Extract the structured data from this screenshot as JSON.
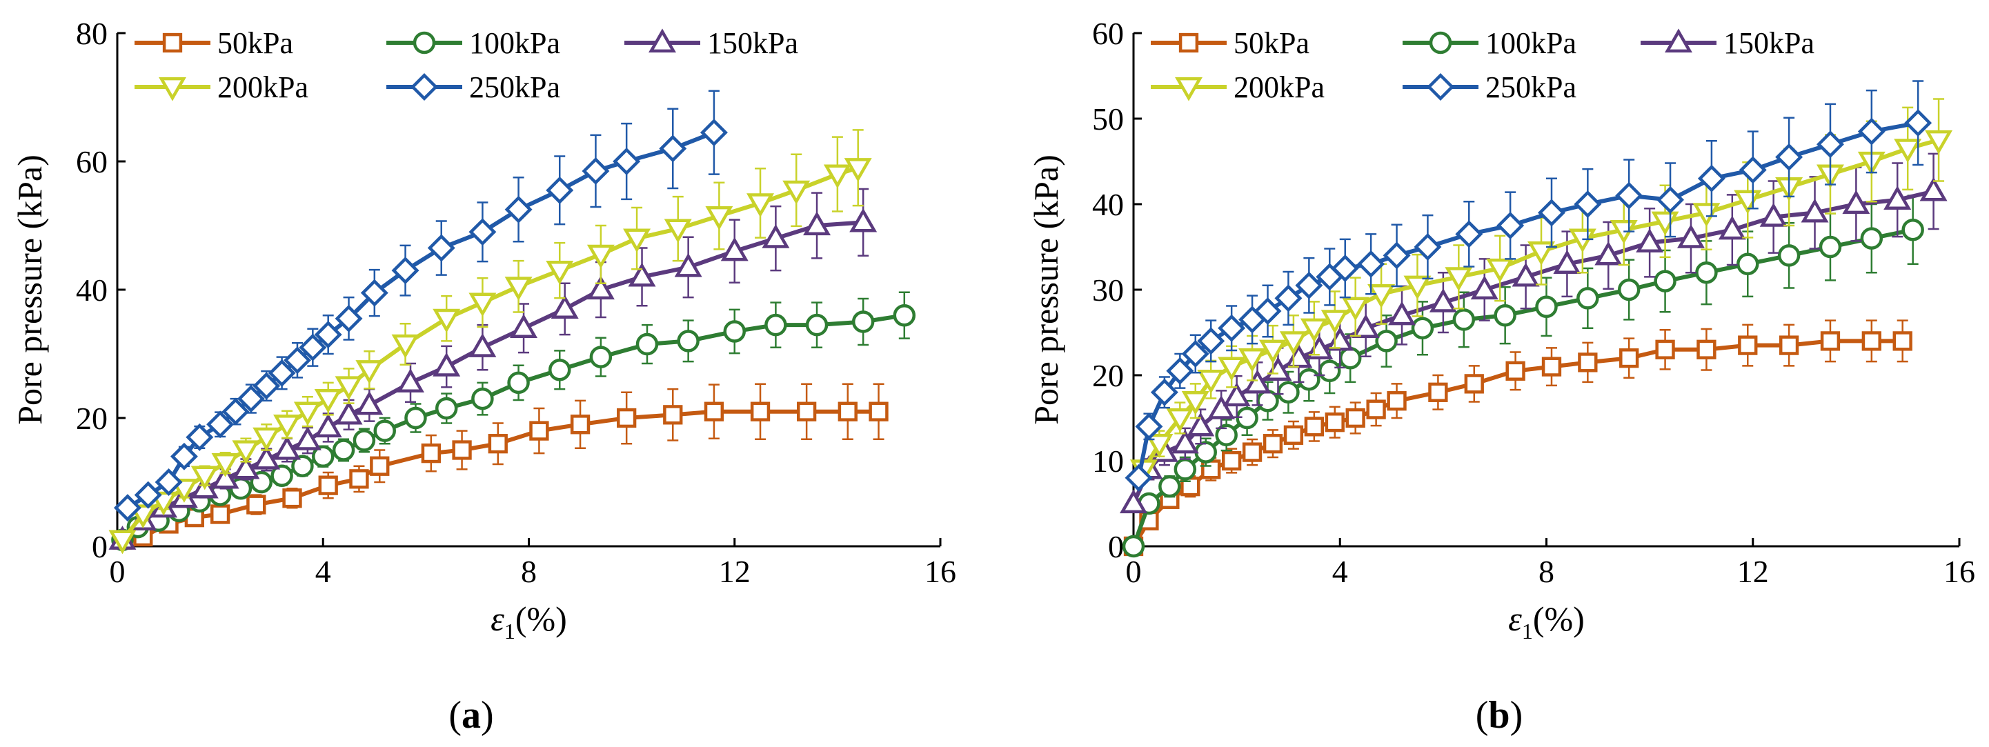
{
  "chart_data": [
    {
      "panel": "(a)",
      "type": "line",
      "xlabel_symbol": "ε",
      "xlabel_sub": "1",
      "xlabel_unit": "(%)",
      "ylabel": "Pore pressure (kPa)",
      "xlim": [
        0,
        16
      ],
      "ylim": [
        0,
        80
      ],
      "xticks": [
        0,
        4,
        8,
        12,
        16
      ],
      "yticks": [
        0,
        20,
        40,
        60,
        80
      ],
      "series": [
        {
          "name": "50kPa",
          "color": "#c55a11",
          "marker": "square",
          "x": [
            0.1,
            0.5,
            1.0,
            1.5,
            2.0,
            2.7,
            3.4,
            4.1,
            4.7,
            5.1,
            6.1,
            6.7,
            7.4,
            8.2,
            9.0,
            9.9,
            10.8,
            11.6,
            12.5,
            13.4,
            14.2,
            14.8
          ],
          "y": [
            1,
            1.5,
            3.5,
            4.5,
            5,
            6.5,
            7.5,
            9.5,
            10.5,
            12.5,
            14.5,
            15,
            16,
            18,
            19,
            20,
            20.5,
            21,
            21,
            21,
            21,
            21
          ],
          "err": [
            0,
            0.5,
            1,
            1,
            1.2,
            1.5,
            1.5,
            2,
            2,
            2.5,
            2.8,
            3,
            3.2,
            3.5,
            3.7,
            4,
            4,
            4.2,
            4.3,
            4.3,
            4.3,
            4.3
          ]
        },
        {
          "name": "100kPa",
          "color": "#2e7d32",
          "marker": "circle",
          "x": [
            0.1,
            0.4,
            0.8,
            1.2,
            1.6,
            2.0,
            2.4,
            2.8,
            3.2,
            3.6,
            4.0,
            4.4,
            4.8,
            5.2,
            5.8,
            6.4,
            7.1,
            7.8,
            8.6,
            9.4,
            10.3,
            11.1,
            12.0,
            12.8,
            13.6,
            14.5,
            15.3
          ],
          "y": [
            1,
            3,
            4,
            5.5,
            7,
            8,
            9,
            10,
            11,
            12.5,
            14,
            15,
            16.5,
            18,
            20,
            21.5,
            23,
            25.5,
            27.5,
            29.5,
            31.5,
            32,
            33.5,
            34.5,
            34.5,
            35,
            36
          ],
          "err": [
            0,
            0.8,
            1,
            1,
            1.2,
            1.2,
            1.3,
            1.4,
            1.5,
            1.5,
            1.6,
            1.7,
            1.8,
            2,
            2.2,
            2.3,
            2.5,
            2.7,
            3,
            3,
            3,
            3.2,
            3.4,
            3.5,
            3.5,
            3.6,
            3.6
          ]
        },
        {
          "name": "150kPa",
          "color": "#5b3a7e",
          "marker": "triangle-up",
          "x": [
            0.1,
            0.5,
            0.9,
            1.3,
            1.7,
            2.1,
            2.5,
            2.9,
            3.3,
            3.7,
            4.1,
            4.5,
            4.9,
            5.7,
            6.4,
            7.1,
            7.9,
            8.7,
            9.4,
            10.2,
            11.1,
            12.0,
            12.8,
            13.6,
            14.5
          ],
          "y": [
            1,
            4,
            6,
            7.5,
            9,
            10.5,
            12,
            13.5,
            15,
            16.5,
            18.5,
            20.5,
            22,
            25.5,
            28,
            31,
            34,
            37,
            40,
            42,
            43.5,
            46,
            48,
            50,
            50.5
          ],
          "err": [
            0,
            1,
            1.2,
            1.3,
            1.4,
            1.5,
            1.6,
            1.7,
            1.8,
            2,
            2.2,
            2.3,
            2.5,
            3,
            3.2,
            3.5,
            3.8,
            4,
            4.3,
            4.5,
            4.7,
            4.9,
            5,
            5.1,
            5.2
          ]
        },
        {
          "name": "200kPa",
          "color": "#c9d22a",
          "marker": "triangle-down",
          "x": [
            0.1,
            0.5,
            0.9,
            1.3,
            1.7,
            2.1,
            2.5,
            2.9,
            3.3,
            3.7,
            4.1,
            4.5,
            4.9,
            5.6,
            6.4,
            7.1,
            7.8,
            8.6,
            9.4,
            10.1,
            10.9,
            11.7,
            12.5,
            13.2,
            14.0,
            14.4
          ],
          "y": [
            1,
            5,
            7,
            9,
            11,
            13,
            15,
            17,
            19,
            21,
            23,
            25,
            27.5,
            31.5,
            35.5,
            38,
            40.5,
            43,
            45.5,
            48,
            49.5,
            51.5,
            53.5,
            55.5,
            58,
            59
          ],
          "err": [
            0,
            1,
            1.2,
            1.4,
            1.5,
            1.6,
            1.8,
            2,
            2.1,
            2.3,
            2.5,
            2.7,
            2.9,
            3.2,
            3.5,
            3.8,
            4,
            4.3,
            4.5,
            4.8,
            5,
            5.2,
            5.4,
            5.6,
            5.8,
            5.9
          ]
        },
        {
          "name": "250kPa",
          "color": "#2059a8",
          "marker": "diamond",
          "x": [
            0.2,
            0.6,
            1.0,
            1.3,
            1.6,
            2.0,
            2.3,
            2.6,
            2.9,
            3.2,
            3.5,
            3.8,
            4.1,
            4.5,
            5.0,
            5.6,
            6.3,
            7.1,
            7.8,
            8.6,
            9.3,
            9.9,
            10.8,
            11.6
          ],
          "y": [
            6,
            8,
            10,
            14,
            17,
            19,
            21,
            23,
            25,
            27,
            29,
            31,
            33,
            35.5,
            39.5,
            43,
            46.5,
            49,
            52.5,
            55.5,
            58.5,
            60,
            62,
            64.5
          ],
          "err": [
            0,
            1,
            1.2,
            1.5,
            1.7,
            1.9,
            2,
            2.2,
            2.3,
            2.5,
            2.7,
            2.9,
            3,
            3.3,
            3.6,
            3.9,
            4.2,
            4.6,
            5,
            5.3,
            5.6,
            5.9,
            6.2,
            6.5
          ]
        }
      ]
    },
    {
      "panel": "(b)",
      "type": "line",
      "xlabel_symbol": "ε",
      "xlabel_sub": "1",
      "xlabel_unit": "(%)",
      "ylabel": "Pore pressure (kPa)",
      "xlim": [
        0,
        16
      ],
      "ylim": [
        0,
        60
      ],
      "xticks": [
        0,
        4,
        8,
        12,
        16
      ],
      "yticks": [
        0,
        10,
        20,
        30,
        40,
        50,
        60
      ],
      "series": [
        {
          "name": "50kPa",
          "color": "#c55a11",
          "marker": "square",
          "x": [
            0,
            0.3,
            0.7,
            1.1,
            1.5,
            1.9,
            2.3,
            2.7,
            3.1,
            3.5,
            3.9,
            4.3,
            4.7,
            5.1,
            5.9,
            6.6,
            7.4,
            8.1,
            8.8,
            9.6,
            10.3,
            11.1,
            11.9,
            12.7,
            13.5,
            14.3,
            14.9
          ],
          "y": [
            0,
            3,
            5.5,
            7,
            9,
            10,
            11,
            12,
            13,
            14,
            14.5,
            15,
            16,
            17,
            18,
            19,
            20.5,
            21,
            21.5,
            22,
            23,
            23,
            23.5,
            23.5,
            24,
            24,
            24
          ],
          "err": [
            0,
            0.8,
            1,
            1.2,
            1.3,
            1.4,
            1.5,
            1.6,
            1.6,
            1.7,
            1.8,
            1.8,
            1.9,
            2,
            2,
            2.1,
            2.2,
            2.2,
            2.3,
            2.3,
            2.3,
            2.4,
            2.4,
            2.4,
            2.4,
            2.4,
            2.4
          ]
        },
        {
          "name": "100kPa",
          "color": "#2e7d32",
          "marker": "circle",
          "x": [
            0,
            0.3,
            0.7,
            1.0,
            1.4,
            1.8,
            2.2,
            2.6,
            3.0,
            3.4,
            3.8,
            4.2,
            4.9,
            5.6,
            6.4,
            7.2,
            8.0,
            8.8,
            9.6,
            10.3,
            11.1,
            11.9,
            12.7,
            13.5,
            14.3,
            15.1
          ],
          "y": [
            0,
            5,
            7,
            9,
            11,
            13,
            15,
            17,
            18,
            19.5,
            20.5,
            22,
            24,
            25.5,
            26.5,
            27,
            28,
            29,
            30,
            31,
            32,
            33,
            34,
            35,
            36,
            37
          ],
          "err": [
            0,
            1,
            1.2,
            1.4,
            1.6,
            1.8,
            2,
            2.2,
            2.4,
            2.5,
            2.6,
            2.8,
            3,
            3.1,
            3.2,
            3.3,
            3.4,
            3.5,
            3.5,
            3.6,
            3.7,
            3.8,
            3.8,
            3.9,
            4,
            4
          ]
        },
        {
          "name": "150kPa",
          "color": "#5b3a7e",
          "marker": "triangle-up",
          "x": [
            0,
            0.3,
            0.6,
            1.0,
            1.3,
            1.7,
            2.0,
            2.4,
            2.8,
            3.2,
            3.6,
            4.0,
            4.5,
            5.2,
            6.0,
            6.8,
            7.6,
            8.4,
            9.2,
            10.0,
            10.8,
            11.6,
            12.4,
            13.2,
            14.0,
            14.8,
            15.5
          ],
          "y": [
            5,
            9,
            11,
            12,
            14,
            16,
            17.5,
            19,
            20.5,
            22,
            23,
            24,
            25.5,
            27,
            28.5,
            30,
            31.5,
            33,
            34,
            35.5,
            36,
            37,
            38.5,
            39,
            40,
            40.5,
            41.5
          ],
          "err": [
            0,
            1.2,
            1.5,
            1.8,
            2,
            2.2,
            2.4,
            2.5,
            2.7,
            2.8,
            3,
            3.1,
            3.3,
            3.4,
            3.5,
            3.6,
            3.7,
            3.8,
            3.9,
            4,
            4,
            4.1,
            4.2,
            4.2,
            4.3,
            4.3,
            4.4
          ]
        },
        {
          "name": "200kPa",
          "color": "#c9d22a",
          "marker": "triangle-down",
          "x": [
            0.2,
            0.5,
            0.9,
            1.2,
            1.5,
            1.9,
            2.3,
            2.7,
            3.1,
            3.5,
            3.9,
            4.3,
            4.8,
            5.5,
            6.3,
            7.1,
            7.9,
            8.7,
            9.5,
            10.3,
            11.1,
            11.9,
            12.7,
            13.5,
            14.3,
            15.0,
            15.6
          ],
          "y": [
            9,
            12,
            15,
            17,
            19.5,
            21,
            22,
            23,
            24,
            25.5,
            26.5,
            28,
            29.5,
            30.5,
            31.5,
            32.5,
            34.5,
            36,
            37,
            38,
            39,
            40.5,
            42,
            43.5,
            45,
            46.5,
            47.5
          ],
          "err": [
            0,
            1.5,
            1.8,
            2,
            2.2,
            2.4,
            2.6,
            2.8,
            3,
            3.1,
            3.3,
            3.4,
            3.5,
            3.6,
            3.7,
            3.8,
            3.9,
            4,
            4.1,
            4.2,
            4.3,
            4.4,
            4.5,
            4.6,
            4.7,
            4.8,
            4.8
          ]
        },
        {
          "name": "250kPa",
          "color": "#2059a8",
          "marker": "diamond",
          "x": [
            0.1,
            0.3,
            0.6,
            0.9,
            1.2,
            1.5,
            1.9,
            2.3,
            2.6,
            3.0,
            3.4,
            3.8,
            4.1,
            4.6,
            5.1,
            5.7,
            6.5,
            7.3,
            8.1,
            8.8,
            9.6,
            10.4,
            11.2,
            12.0,
            12.7,
            13.5,
            14.3,
            15.2
          ],
          "y": [
            8,
            14,
            18,
            20.5,
            22.5,
            24,
            25.5,
            26.5,
            27.5,
            29,
            30.5,
            31.5,
            32.5,
            33,
            34,
            35,
            36.5,
            37.5,
            39,
            40,
            41,
            40.5,
            43,
            44,
            45.5,
            47,
            48.5,
            49.5
          ],
          "err": [
            0,
            1.5,
            1.8,
            2,
            2.2,
            2.4,
            2.6,
            2.8,
            3,
            3.1,
            3.2,
            3.3,
            3.4,
            3.5,
            3.6,
            3.7,
            3.8,
            3.9,
            4,
            4.1,
            4.2,
            4.3,
            4.4,
            4.5,
            4.6,
            4.7,
            4.8,
            4.9
          ]
        }
      ]
    }
  ]
}
